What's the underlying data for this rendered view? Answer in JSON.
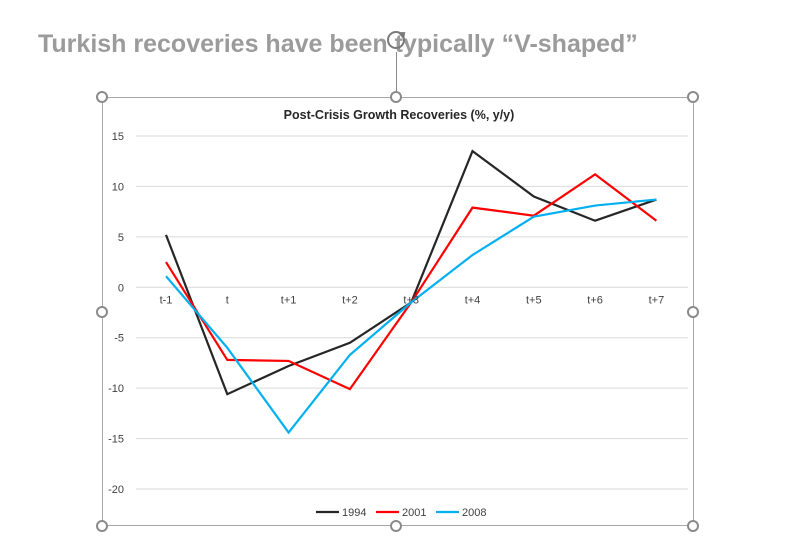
{
  "slide": {
    "title": "Turkish recoveries have been typically “V-shaped”"
  },
  "chart_data": {
    "type": "line",
    "title": "Post-Crisis Growth Recoveries (%, y/y)",
    "categories": [
      "t-1",
      "t",
      "t+1",
      "t+2",
      "t+3",
      "t+4",
      "t+5",
      "t+6",
      "t+7"
    ],
    "ylim": [
      -20,
      15
    ],
    "yticks": [
      15,
      10,
      5,
      0,
      -5,
      -10,
      -15,
      -20
    ],
    "grid": true,
    "legend_position": "bottom",
    "series": [
      {
        "name": "1994",
        "color": "#262626",
        "values": [
          5.2,
          -10.6,
          -7.8,
          -5.5,
          -1.5,
          13.5,
          9.0,
          6.6,
          8.7
        ]
      },
      {
        "name": "2001",
        "color": "#ff0000",
        "values": [
          2.5,
          -7.2,
          -7.3,
          -10.1,
          -1.5,
          7.9,
          7.1,
          11.2,
          6.6
        ]
      },
      {
        "name": "2008",
        "color": "#00b0f0",
        "values": [
          1.1,
          -6.0,
          -14.4,
          -6.7,
          -1.5,
          3.2,
          7.0,
          8.1,
          8.7
        ]
      }
    ]
  }
}
